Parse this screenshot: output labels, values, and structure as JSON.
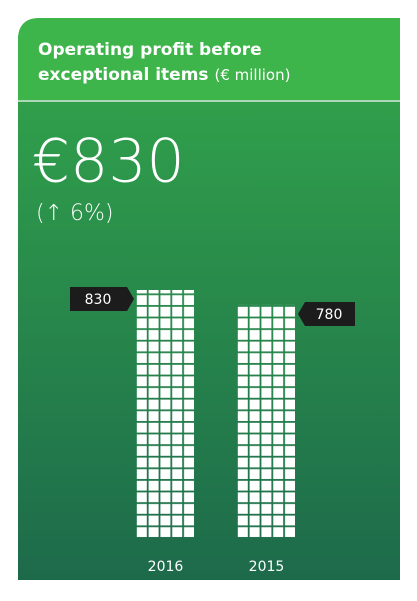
{
  "chart_data": {
    "type": "bar",
    "title": "Operating profit before exceptional items",
    "unit": "(€ million)",
    "headline": "€830",
    "change": "(↑ 6%)",
    "categories": [
      "2016",
      "2015"
    ],
    "values": [
      830,
      780
    ],
    "color": "#ffffff"
  }
}
